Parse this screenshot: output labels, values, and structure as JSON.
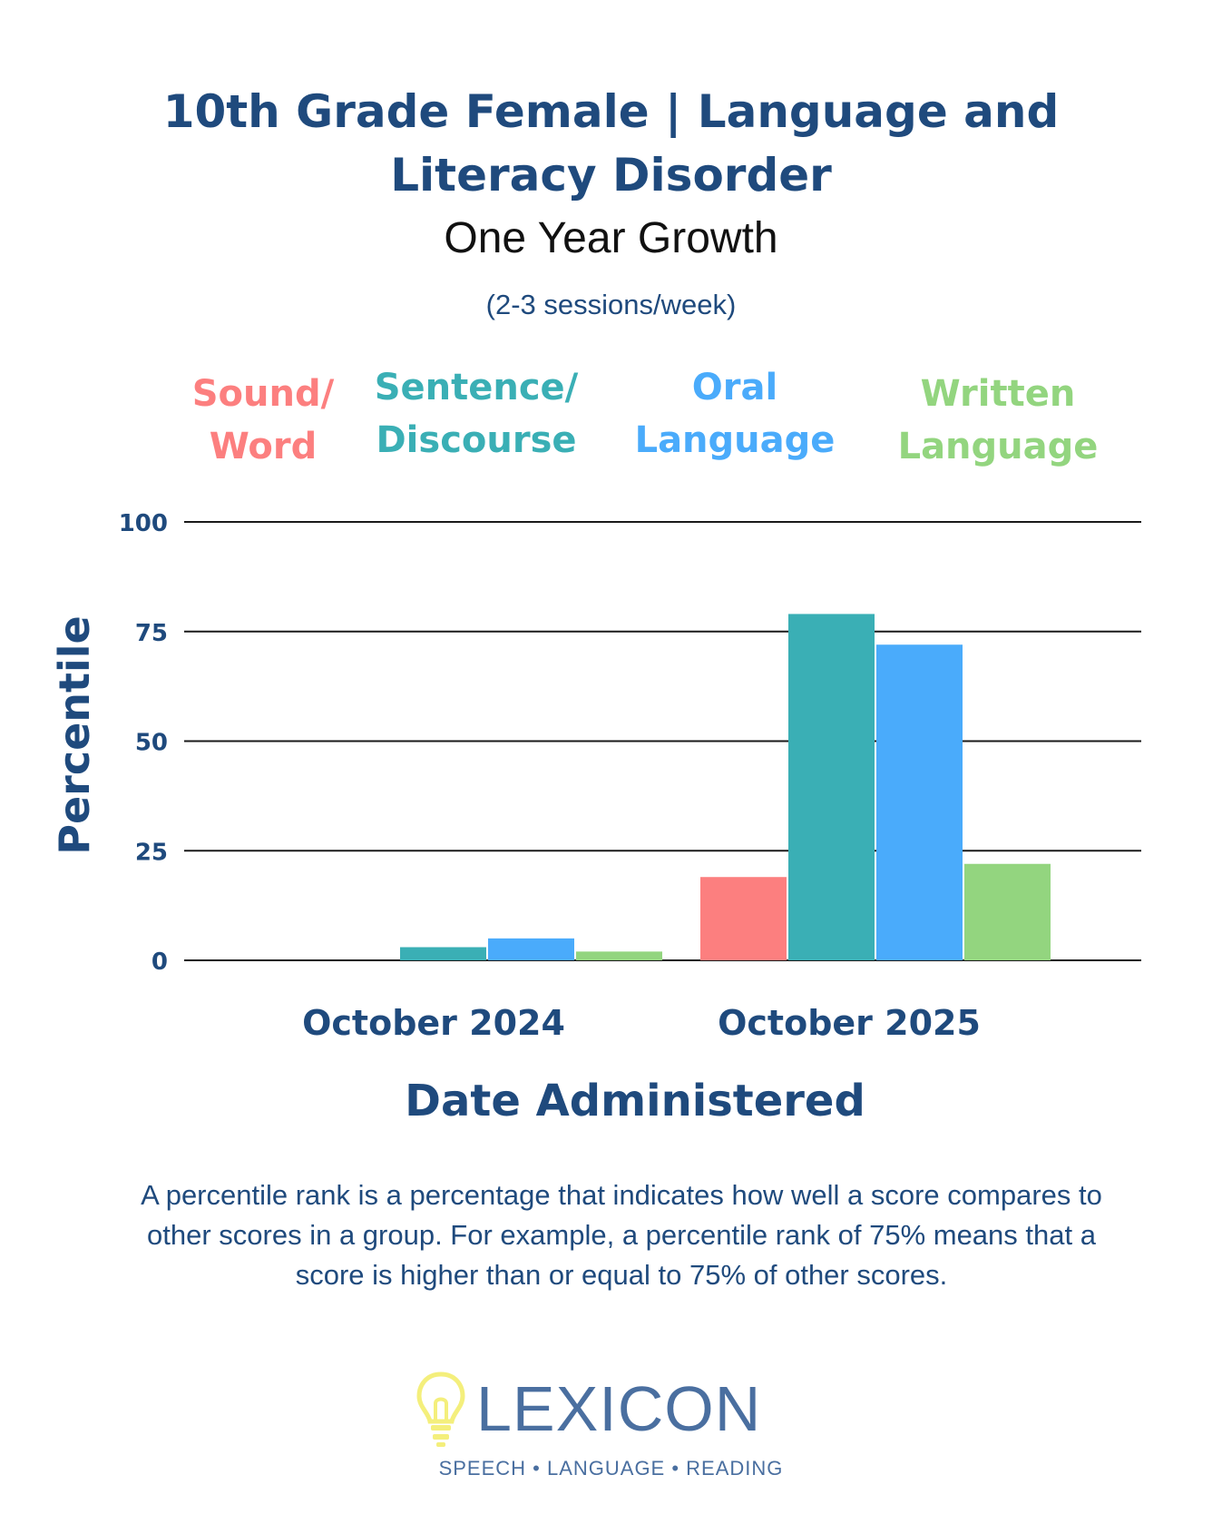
{
  "chart_data": {
    "type": "bar",
    "title": [
      "10th Grade Female  |  Language and",
      "Literacy Disorder"
    ],
    "subtitle": "One Year Growth",
    "subtitle2": "(2-3 sessions/week)",
    "categories": [
      "October 2024",
      "October 2025"
    ],
    "series": [
      {
        "name": "Sound/ Word",
        "label_lines": [
          "Sound/",
          "Word"
        ],
        "color": "#fc7f7f",
        "values": [
          0,
          19
        ]
      },
      {
        "name": "Sentence/ Discourse",
        "label_lines": [
          "Sentence/",
          "Discourse"
        ],
        "color": "#3aafb5",
        "values": [
          3,
          79
        ]
      },
      {
        "name": "Oral Language",
        "label_lines": [
          "Oral",
          "Language"
        ],
        "color": "#4aabfb",
        "values": [
          5,
          72
        ]
      },
      {
        "name": "Written Language",
        "label_lines": [
          "Written",
          "Language"
        ],
        "color": "#93d57f",
        "values": [
          2,
          22
        ]
      }
    ],
    "xlabel": "Date Administered",
    "ylabel": "Percentile",
    "ylim": [
      0,
      100
    ],
    "yticks": [
      0,
      25,
      50,
      75,
      100
    ],
    "grid": true,
    "legend_position": "top"
  },
  "footnote": "A percentile rank is a percentage that indicates how well a score compares to other scores in a group. For example, a percentile rank of 75% means that a score is higher than or equal to 75% of other scores.",
  "logo": {
    "name": "LEXICON",
    "icon": "lightbulb-icon",
    "icon_color": "#f4ef7c",
    "tagline": "SPEECH  •  LANGUAGE  •  READING"
  },
  "colors": {
    "navy": "#1f4a7d",
    "logo_blue": "#4a6fa0"
  }
}
